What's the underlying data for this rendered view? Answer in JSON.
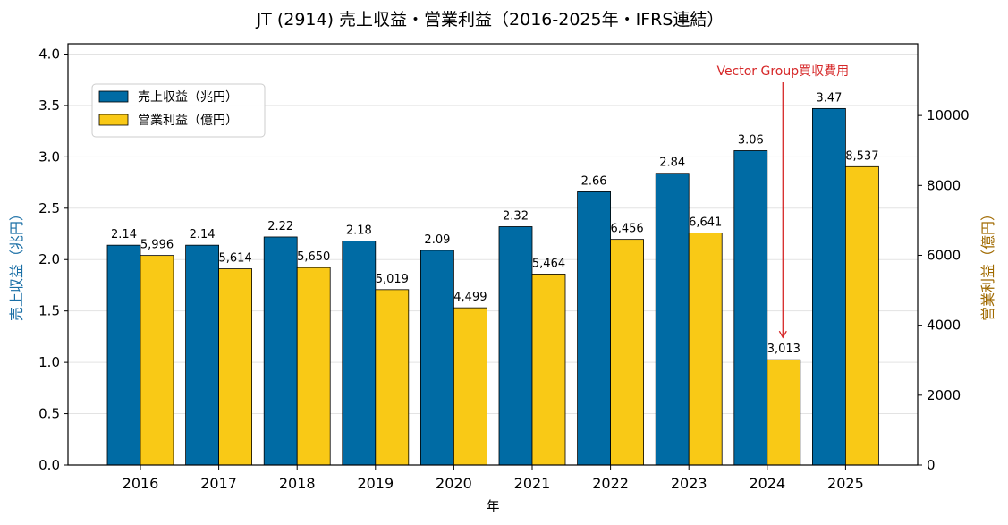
{
  "chart_data": {
    "type": "bar",
    "title": "JT (2914) 売上収益・営業利益（2016-2025年・IFRS連結）",
    "xlabel": "年",
    "ylabel_left": "売上収益（兆円）",
    "ylabel_right": "営業利益（億円）",
    "categories": [
      "2016",
      "2017",
      "2018",
      "2019",
      "2020",
      "2021",
      "2022",
      "2023",
      "2024",
      "2025"
    ],
    "ylim_left": [
      0,
      4.1
    ],
    "ylim_right": [
      0,
      12050
    ],
    "yticks_left": [
      "0.0",
      "0.5",
      "1.0",
      "1.5",
      "2.0",
      "2.5",
      "3.0",
      "3.5",
      "4.0"
    ],
    "yticks_right": [
      "0",
      "2000",
      "4000",
      "6000",
      "8000",
      "10000"
    ],
    "grid": true,
    "legend_position": "upper-left",
    "series": [
      {
        "name": "売上収益（兆円）",
        "axis": "left",
        "color": "#006ba4",
        "values": [
          2.14,
          2.14,
          2.22,
          2.18,
          2.09,
          2.32,
          2.66,
          2.84,
          3.06,
          3.47
        ],
        "labels": [
          "2.14",
          "2.14",
          "2.22",
          "2.18",
          "2.09",
          "2.32",
          "2.66",
          "2.84",
          "3.06",
          "3.47"
        ]
      },
      {
        "name": "営業利益（億円）",
        "axis": "right",
        "color": "#f9c916",
        "values": [
          5996,
          5614,
          5650,
          5019,
          4499,
          5464,
          6456,
          6641,
          3013,
          8537
        ],
        "labels": [
          "5,996",
          "5,614",
          "5,650",
          "5,019",
          "4,499",
          "5,464",
          "6,456",
          "6,641",
          "3,013",
          "8,537"
        ]
      }
    ],
    "annotation": {
      "text": "Vector Group買収費用",
      "target_category": "2024",
      "target_value": 3013,
      "color": "#d62728"
    }
  }
}
